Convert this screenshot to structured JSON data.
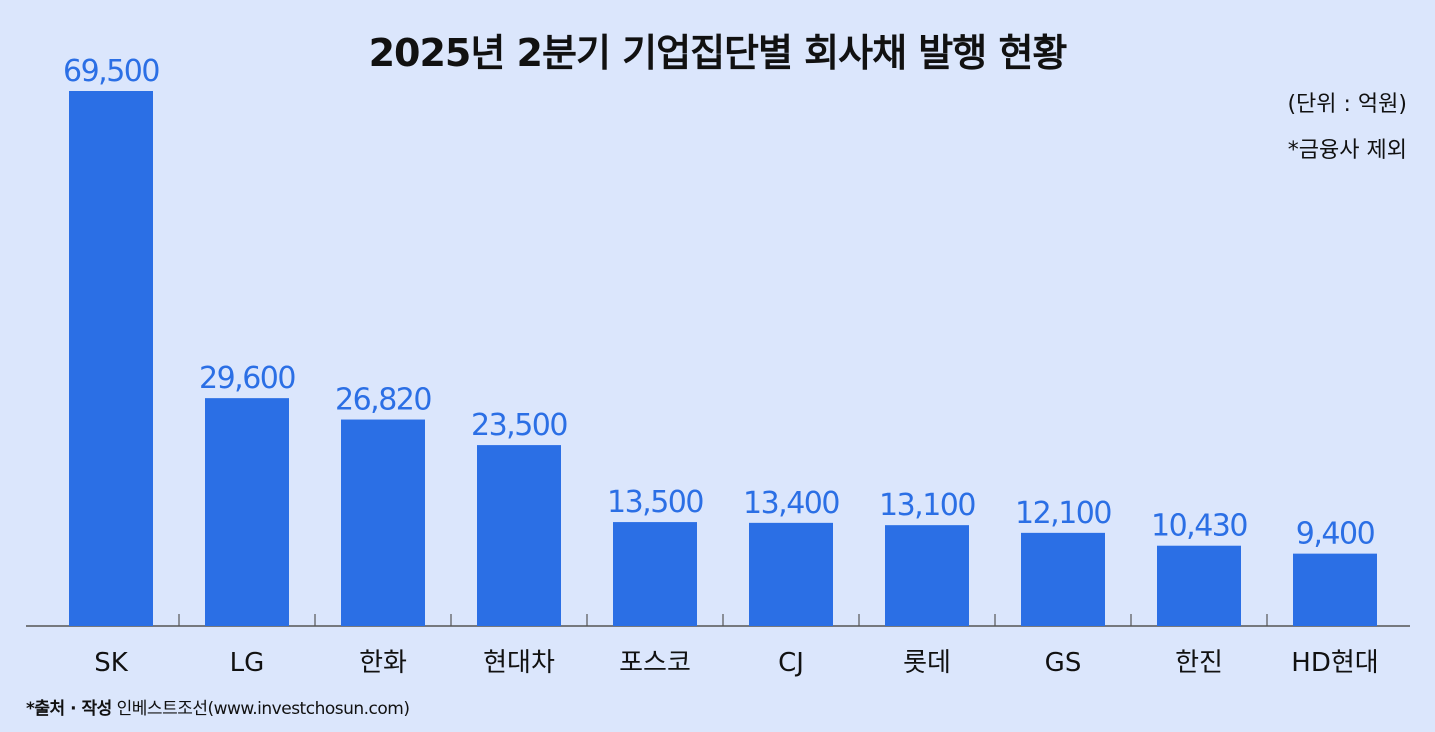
{
  "title": "2025년 2분기 기업집단별 회사채 발행 현황",
  "unit_note": "(단위 : 억원)",
  "exclusion_note": "*금융사 제외",
  "source": {
    "label": "*출처 · 작성",
    "text": "인베스트조선(www.investchosun.com)"
  },
  "colors": {
    "bar": "#2b6fe5",
    "label": "#2b6fe5",
    "axis": "#555555",
    "background": "#dbe6fc"
  },
  "chart_data": {
    "type": "bar",
    "categories": [
      "SK",
      "LG",
      "한화",
      "현대차",
      "포스코",
      "CJ",
      "롯데",
      "GS",
      "한진",
      "HD현대"
    ],
    "values": [
      69500,
      29600,
      26820,
      23500,
      13500,
      13400,
      13100,
      12100,
      10430,
      9400
    ],
    "value_labels": [
      "69,500",
      "29,600",
      "26,820",
      "23,500",
      "13,500",
      "13,400",
      "13,100",
      "12,100",
      "10,430",
      "9,400"
    ],
    "ylim": [
      0,
      69500
    ],
    "grid": false,
    "legend": "none"
  }
}
